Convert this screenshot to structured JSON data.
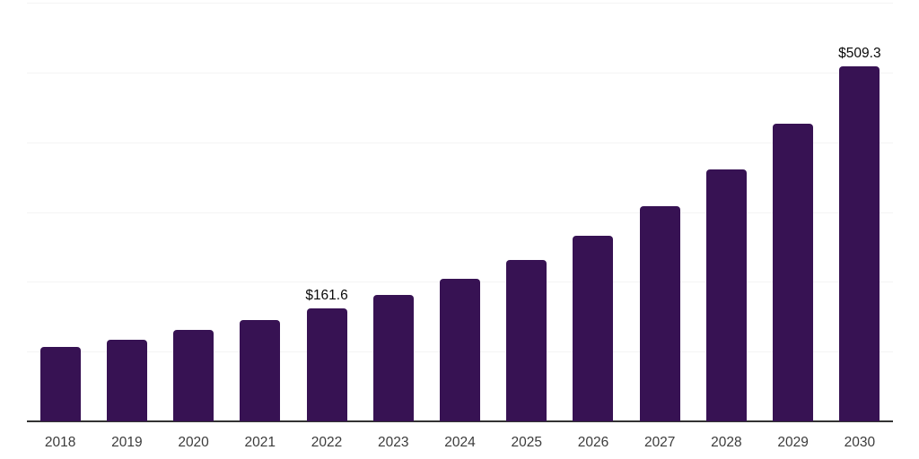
{
  "chart_data": {
    "type": "bar",
    "title": "",
    "categories": [
      "2018",
      "2019",
      "2020",
      "2021",
      "2022",
      "2023",
      "2024",
      "2025",
      "2026",
      "2027",
      "2028",
      "2029",
      "2030"
    ],
    "values": [
      106.7,
      117.5,
      131.6,
      144.8,
      161.6,
      180.6,
      203.7,
      231.5,
      266.1,
      308.7,
      360.9,
      426.2,
      509.3
    ],
    "bar_labels": {
      "2022": "$161.6",
      "2030": "$509.3"
    },
    "xlabel": "",
    "ylabel": "",
    "ylim": [
      0,
      600
    ],
    "grid": true,
    "grid_step": 100,
    "y_tick_labels_visible": false,
    "legend": "none",
    "colors": {
      "bar": "#371253",
      "axis": "#333333",
      "gridline": "#f4f4f4",
      "tick_text": "#3c3c3c",
      "value_label_text": "#0a0a0a",
      "background": "#ffffff"
    }
  }
}
